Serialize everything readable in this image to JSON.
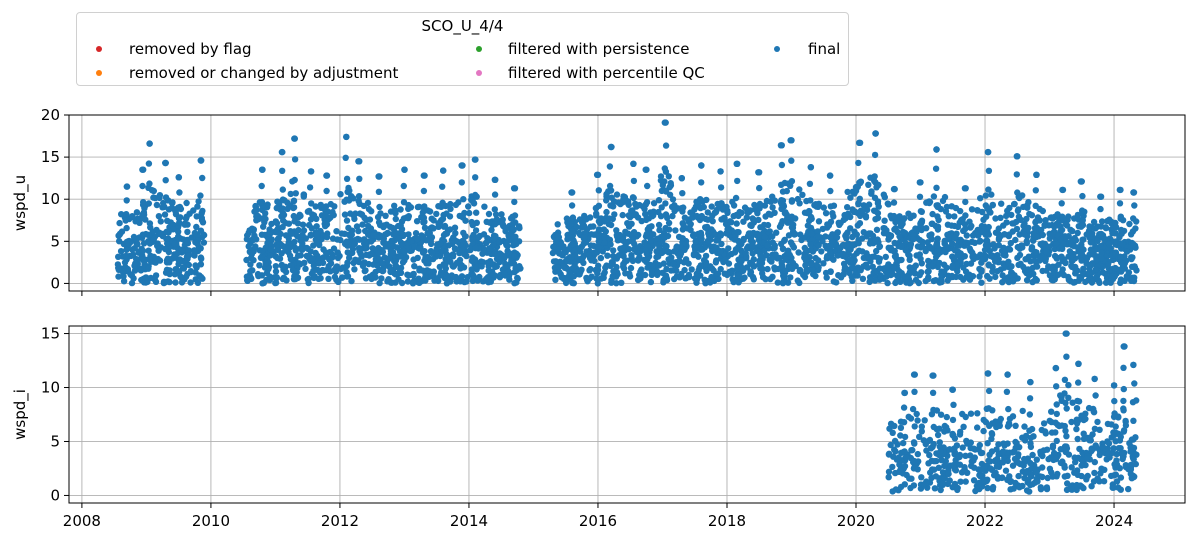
{
  "legend": {
    "title": "SCO_U_4/4",
    "items": [
      {
        "label": "removed by flag",
        "color": "#d62728"
      },
      {
        "label": "removed or changed by adjustment",
        "color": "#ff7f0e"
      },
      {
        "label": "filtered with persistence",
        "color": "#2ca02c"
      },
      {
        "label": "filtered with percentile QC",
        "color": "#e377c2"
      },
      {
        "label": "final",
        "color": "#1f77b4"
      }
    ]
  },
  "chart_data": [
    {
      "type": "scatter",
      "title": "",
      "ylabel": "wspd_u",
      "xlim": [
        2007.8,
        2025.1
      ],
      "ylim": [
        -0.9,
        20
      ],
      "yticks": [
        0,
        5,
        10,
        15,
        20
      ],
      "xticks": [
        2008,
        2010,
        2012,
        2014,
        2016,
        2018,
        2020,
        2022,
        2024
      ],
      "xtick_labels_shown": false,
      "grid": true,
      "series": [
        {
          "name": "final",
          "color": "#1f77b4",
          "segments": [
            {
              "x_start": 2008.55,
              "x_end": 2009.9
            },
            {
              "x_start": 2010.55,
              "x_end": 2014.8
            },
            {
              "x_start": 2015.3,
              "x_end": 2024.35
            }
          ],
          "peaks": [
            {
              "x": 2008.7,
              "y": 11.5
            },
            {
              "x": 2008.95,
              "y": 13.5
            },
            {
              "x": 2009.05,
              "y": 16.6
            },
            {
              "x": 2009.3,
              "y": 14.3
            },
            {
              "x": 2009.5,
              "y": 12.6
            },
            {
              "x": 2009.85,
              "y": 14.6
            },
            {
              "x": 2010.8,
              "y": 13.5
            },
            {
              "x": 2011.1,
              "y": 15.6
            },
            {
              "x": 2011.3,
              "y": 17.2
            },
            {
              "x": 2011.55,
              "y": 13.3
            },
            {
              "x": 2011.8,
              "y": 12.8
            },
            {
              "x": 2012.1,
              "y": 17.4
            },
            {
              "x": 2012.3,
              "y": 14.5
            },
            {
              "x": 2012.6,
              "y": 12.7
            },
            {
              "x": 2013.0,
              "y": 13.5
            },
            {
              "x": 2013.3,
              "y": 12.8
            },
            {
              "x": 2013.6,
              "y": 13.4
            },
            {
              "x": 2013.9,
              "y": 14.0
            },
            {
              "x": 2014.1,
              "y": 14.7
            },
            {
              "x": 2014.4,
              "y": 12.3
            },
            {
              "x": 2014.7,
              "y": 11.3
            },
            {
              "x": 2015.6,
              "y": 10.8
            },
            {
              "x": 2016.0,
              "y": 12.9
            },
            {
              "x": 2016.2,
              "y": 16.2
            },
            {
              "x": 2016.55,
              "y": 14.2
            },
            {
              "x": 2016.75,
              "y": 13.5
            },
            {
              "x": 2017.05,
              "y": 19.1
            },
            {
              "x": 2017.3,
              "y": 12.5
            },
            {
              "x": 2017.6,
              "y": 14.0
            },
            {
              "x": 2017.9,
              "y": 13.3
            },
            {
              "x": 2018.15,
              "y": 14.2
            },
            {
              "x": 2018.5,
              "y": 13.2
            },
            {
              "x": 2018.85,
              "y": 16.4
            },
            {
              "x": 2019.0,
              "y": 17.0
            },
            {
              "x": 2019.3,
              "y": 13.8
            },
            {
              "x": 2019.6,
              "y": 12.8
            },
            {
              "x": 2020.05,
              "y": 16.7
            },
            {
              "x": 2020.3,
              "y": 17.8
            },
            {
              "x": 2020.6,
              "y": 11.2
            },
            {
              "x": 2021.0,
              "y": 12.0
            },
            {
              "x": 2021.25,
              "y": 15.9
            },
            {
              "x": 2021.7,
              "y": 11.3
            },
            {
              "x": 2022.05,
              "y": 15.6
            },
            {
              "x": 2022.5,
              "y": 15.1
            },
            {
              "x": 2022.8,
              "y": 12.9
            },
            {
              "x": 2023.2,
              "y": 11.1
            },
            {
              "x": 2023.5,
              "y": 12.1
            },
            {
              "x": 2023.8,
              "y": 10.3
            },
            {
              "x": 2024.1,
              "y": 11.1
            },
            {
              "x": 2024.3,
              "y": 10.8
            }
          ]
        }
      ]
    },
    {
      "type": "scatter",
      "title": "",
      "ylabel": "wspd_i",
      "xlim": [
        2007.8,
        2025.1
      ],
      "ylim": [
        -0.7,
        15.7
      ],
      "yticks": [
        0,
        5,
        10,
        15
      ],
      "xticks": [
        2008,
        2010,
        2012,
        2014,
        2016,
        2018,
        2020,
        2022,
        2024
      ],
      "xtick_labels": [
        "2008",
        "2010",
        "2012",
        "2014",
        "2016",
        "2018",
        "2020",
        "2022",
        "2024"
      ],
      "grid": true,
      "series": [
        {
          "name": "final",
          "color": "#1f77b4",
          "segments": [
            {
              "x_start": 2020.5,
              "x_end": 2024.35
            }
          ],
          "peaks": [
            {
              "x": 2020.75,
              "y": 9.5
            },
            {
              "x": 2020.9,
              "y": 11.2
            },
            {
              "x": 2021.2,
              "y": 11.1
            },
            {
              "x": 2021.5,
              "y": 9.8
            },
            {
              "x": 2022.05,
              "y": 11.3
            },
            {
              "x": 2022.35,
              "y": 11.2
            },
            {
              "x": 2022.7,
              "y": 10.5
            },
            {
              "x": 2023.1,
              "y": 11.8
            },
            {
              "x": 2023.25,
              "y": 15.0
            },
            {
              "x": 2023.45,
              "y": 12.2
            },
            {
              "x": 2023.7,
              "y": 10.8
            },
            {
              "x": 2024.0,
              "y": 10.2
            },
            {
              "x": 2024.15,
              "y": 13.8
            },
            {
              "x": 2024.3,
              "y": 12.1
            }
          ]
        }
      ]
    }
  ]
}
